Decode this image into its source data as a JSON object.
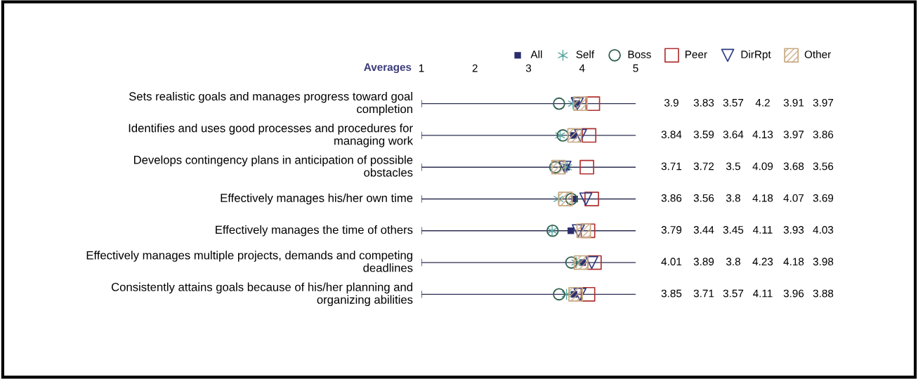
{
  "chart_data": {
    "type": "scatter",
    "orientation": "horizontal",
    "title": "Averages",
    "categories": [
      "Sets realistic goals and manages progress toward goal completion",
      "Identifies and uses good processes and procedures for managing work",
      "Develops contingency plans in anticipation of possible obstacles",
      "Effectively manages his/her own time",
      "Effectively manages the time of others",
      "Effectively manages multiple projects, demands and competing deadlines",
      "Consistently attains goals because of his/her planning and organizing abilities"
    ],
    "series": [
      {
        "name": "All",
        "color": "#2b2d6e",
        "marker": "square",
        "values": [
          3.9,
          3.84,
          3.71,
          3.86,
          3.79,
          4.01,
          3.85
        ]
      },
      {
        "name": "Self",
        "color": "#5aa9a3",
        "marker": "cross",
        "values": [
          3.83,
          3.59,
          3.72,
          3.56,
          3.44,
          3.89,
          3.71
        ]
      },
      {
        "name": "Boss",
        "color": "#2f5f4f",
        "marker": "circle",
        "values": [
          3.57,
          3.64,
          3.5,
          3.8,
          3.45,
          3.8,
          3.57
        ]
      },
      {
        "name": "Peer",
        "color": "#b03030",
        "marker": "square",
        "values": [
          4.2,
          4.13,
          4.09,
          4.18,
          4.11,
          4.23,
          4.11
        ]
      },
      {
        "name": "DirRpt",
        "color": "#2e3a80",
        "marker": "triangle",
        "values": [
          3.91,
          3.97,
          3.68,
          4.07,
          3.93,
          4.18,
          3.96
        ]
      },
      {
        "name": "Other",
        "color": "#c8a882",
        "marker": "square",
        "values": [
          3.97,
          3.86,
          3.56,
          3.69,
          4.03,
          3.98,
          3.88
        ]
      }
    ],
    "xlim": [
      1,
      5
    ],
    "xticks": [
      1,
      2,
      3,
      4,
      5
    ],
    "grid": false,
    "legend": "top right",
    "data_labels": true
  }
}
